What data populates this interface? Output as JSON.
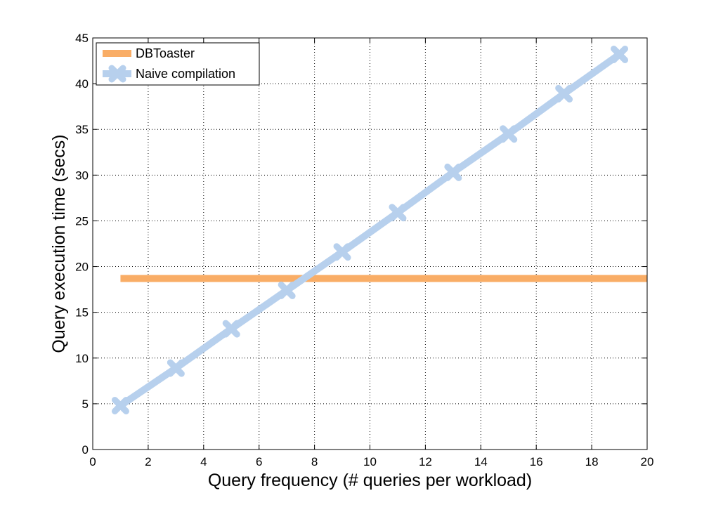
{
  "chart_data": {
    "type": "line",
    "title": "",
    "xlabel": "Query frequency (# queries per workload)",
    "ylabel": "Query execution time (secs)",
    "xlim": [
      0,
      20
    ],
    "ylim": [
      0,
      45
    ],
    "xticks": [
      0,
      2,
      4,
      6,
      8,
      10,
      12,
      14,
      16,
      18,
      20
    ],
    "yticks": [
      0,
      5,
      10,
      15,
      20,
      25,
      30,
      35,
      40,
      45
    ],
    "grid": true,
    "grid_style": "dotted",
    "legend_position": "top-left",
    "series": [
      {
        "name": "DBToaster",
        "color": "#f9ad66",
        "marker": "none",
        "x": [
          1,
          20
        ],
        "y": [
          18.7,
          18.7
        ]
      },
      {
        "name": "Naive compilation",
        "color": "#b7d0ed",
        "marker": "x",
        "x": [
          1,
          3,
          5,
          7,
          9,
          11,
          13,
          15,
          17,
          19
        ],
        "y": [
          4.8,
          8.9,
          13.2,
          17.4,
          21.6,
          25.9,
          30.3,
          34.5,
          38.9,
          43.2
        ]
      }
    ]
  }
}
